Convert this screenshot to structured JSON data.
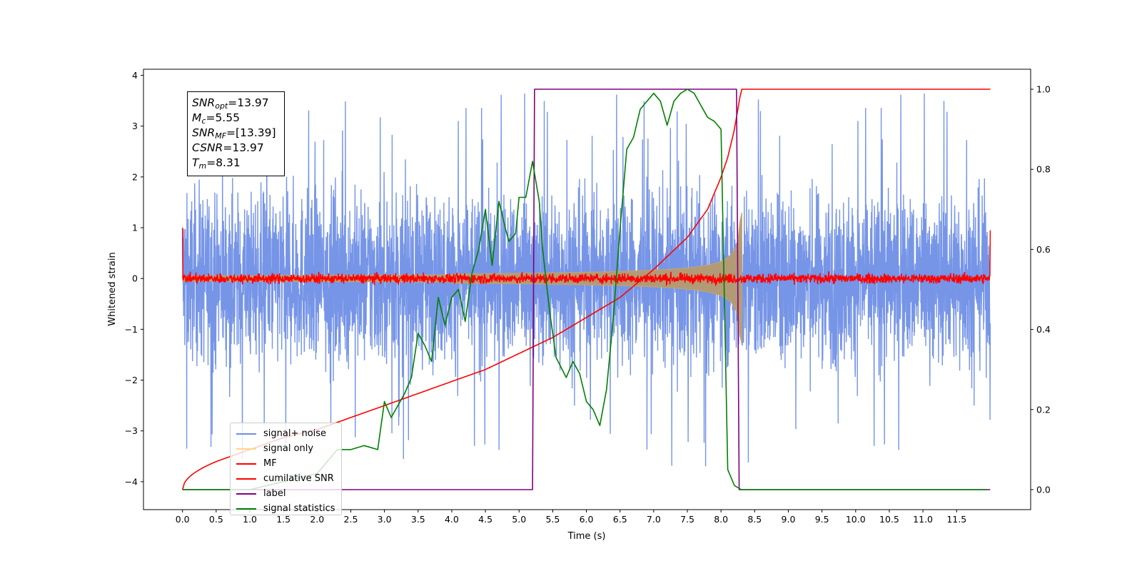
{
  "chart_data": {
    "type": "line",
    "xlabel": "Time (s)",
    "ylabel": "Whitened strain",
    "xlim": [
      -0.58,
      12.6
    ],
    "xticks": [
      0.0,
      0.5,
      1.0,
      1.5,
      2.0,
      2.5,
      3.0,
      3.5,
      4.0,
      4.5,
      5.0,
      5.5,
      6.0,
      6.5,
      7.0,
      7.5,
      8.0,
      8.5,
      9.0,
      9.5,
      10.0,
      10.5,
      11.0,
      11.5
    ],
    "xtick_labels": [
      "0.0",
      "0.5",
      "1.0",
      "1.5",
      "2.0",
      "2.5",
      "3.0",
      "3.5",
      "4.0",
      "4.5",
      "5.0",
      "5.5",
      "6.0",
      "6.5",
      "7.0",
      "7.5",
      "8.0",
      "8.5",
      "9.0",
      "9.5",
      "10.0",
      "10.5",
      "11.0",
      "11.5"
    ],
    "ylim_left": [
      -4.55,
      4.12
    ],
    "yticks_left": [
      -4,
      -3,
      -2,
      -1,
      0,
      1,
      2,
      3,
      4
    ],
    "ytick_labels_left": [
      "−4",
      "−3",
      "−2",
      "−1",
      "0",
      "1",
      "2",
      "3",
      "4"
    ],
    "ylim_right": [
      -0.05,
      1.05
    ],
    "yticks_right": [
      0.0,
      0.2,
      0.4,
      0.6,
      0.8,
      1.0
    ],
    "ytick_labels_right": [
      "0.0",
      "0.2",
      "0.4",
      "0.6",
      "0.8",
      "1.0"
    ],
    "grid": false,
    "legend_position": "bottom-left",
    "series": [
      {
        "name": "signal+ noise",
        "axis": "left",
        "color": "#6f8fe6",
        "kind": "noise",
        "t_start": 0.0,
        "t_end": 12.0,
        "typical_amplitude": 1.8,
        "max_abs": 3.7
      },
      {
        "name": "signal only",
        "axis": "left",
        "color": "#ffa500",
        "kind": "chirp",
        "t_start": 0.0,
        "t_end": 8.31,
        "peak_amplitude": 1.3
      },
      {
        "name": "MF",
        "axis": "left",
        "color": "#ff0000",
        "kind": "noise",
        "t_start": 0.0,
        "t_end": 12.0,
        "typical_amplitude": 0.12,
        "edge_value": 1.0
      },
      {
        "name": "cumilative SNR",
        "axis": "right",
        "color": "#ff0000",
        "x": [
          0.0,
          0.5,
          1.0,
          1.5,
          2.0,
          2.5,
          3.0,
          3.5,
          4.0,
          4.5,
          5.0,
          5.5,
          6.0,
          6.5,
          7.0,
          7.5,
          7.8,
          8.0,
          8.1,
          8.2,
          8.3,
          12.0
        ],
        "y": [
          0.0,
          0.07,
          0.1,
          0.13,
          0.15,
          0.18,
          0.21,
          0.24,
          0.27,
          0.3,
          0.34,
          0.38,
          0.43,
          0.48,
          0.55,
          0.63,
          0.7,
          0.78,
          0.83,
          0.9,
          1.0,
          1.0
        ]
      },
      {
        "name": "label",
        "axis": "right",
        "color": "#800080",
        "x": [
          0.0,
          5.2,
          5.23,
          8.23,
          8.27,
          12.0
        ],
        "y": [
          0.0,
          0.0,
          1.0,
          1.0,
          0.0,
          0.0
        ]
      },
      {
        "name": "signal statistics",
        "axis": "right",
        "color": "#008000",
        "x": [
          0.0,
          0.3,
          1.0,
          2.0,
          2.3,
          2.5,
          2.7,
          2.9,
          3.0,
          3.1,
          3.3,
          3.4,
          3.5,
          3.6,
          3.7,
          3.8,
          3.9,
          4.0,
          4.1,
          4.2,
          4.3,
          4.4,
          4.5,
          4.55,
          4.6,
          4.7,
          4.8,
          4.85,
          4.95,
          5.0,
          5.1,
          5.2,
          5.3,
          5.35,
          5.45,
          5.55,
          5.7,
          5.8,
          5.9,
          6.0,
          6.1,
          6.2,
          6.3,
          6.4,
          6.5,
          6.6,
          6.7,
          6.8,
          6.9,
          7.0,
          7.1,
          7.2,
          7.3,
          7.4,
          7.5,
          7.6,
          7.7,
          7.8,
          7.9,
          8.0,
          8.1,
          8.2,
          8.3,
          8.5,
          8.8,
          11.95
        ],
        "y": [
          0.0,
          0.0,
          0.0,
          0.04,
          0.1,
          0.1,
          0.11,
          0.1,
          0.22,
          0.18,
          0.24,
          0.28,
          0.39,
          0.36,
          0.32,
          0.48,
          0.41,
          0.48,
          0.5,
          0.42,
          0.54,
          0.6,
          0.7,
          0.63,
          0.56,
          0.72,
          0.65,
          0.62,
          0.64,
          0.73,
          0.73,
          0.82,
          0.72,
          0.6,
          0.45,
          0.33,
          0.28,
          0.32,
          0.29,
          0.22,
          0.2,
          0.16,
          0.25,
          0.43,
          0.65,
          0.85,
          0.88,
          0.95,
          0.97,
          0.99,
          0.97,
          0.91,
          0.97,
          0.99,
          1.0,
          0.99,
          0.96,
          0.93,
          0.92,
          0.9,
          0.05,
          0.01,
          0.0,
          0.0,
          0.0,
          0.0
        ]
      }
    ],
    "annotation": {
      "SNR_opt": "13.97",
      "M_c": "5.55",
      "SNR_MF": "[13.39]",
      "CSNR": "13.97",
      "T_m": "8.31"
    }
  }
}
